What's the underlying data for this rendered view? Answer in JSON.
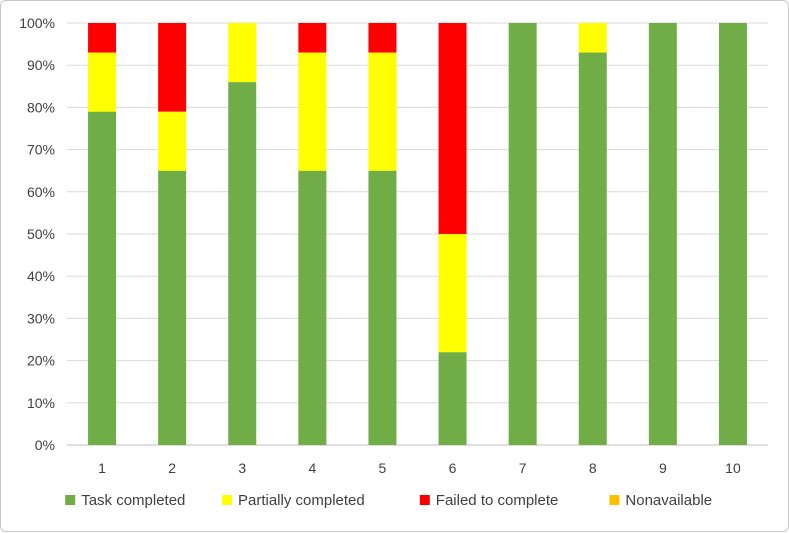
{
  "chart_data": {
    "type": "bar",
    "stacked": true,
    "title": "",
    "xlabel": "",
    "ylabel": "",
    "ylim": [
      0,
      100
    ],
    "y_tick_values": [
      0,
      10,
      20,
      30,
      40,
      50,
      60,
      70,
      80,
      90,
      100
    ],
    "y_tick_labels": [
      "0%",
      "10%",
      "20%",
      "30%",
      "40%",
      "50%",
      "60%",
      "70%",
      "80%",
      "90%",
      "100%"
    ],
    "categories": [
      "1",
      "2",
      "3",
      "4",
      "5",
      "6",
      "7",
      "8",
      "9",
      "10"
    ],
    "grid": true,
    "legend_position": "bottom",
    "series": [
      {
        "name": "Task completed",
        "color": "#70ad47",
        "values": [
          79,
          65,
          86,
          65,
          65,
          22,
          100,
          93,
          100,
          100
        ]
      },
      {
        "name": "Partially completed",
        "color": "#ffff00",
        "values": [
          14,
          14,
          14,
          28,
          28,
          28,
          0,
          7,
          0,
          0
        ]
      },
      {
        "name": "Failed to complete",
        "color": "#ff0000",
        "values": [
          7,
          21,
          0,
          7,
          7,
          50,
          0,
          0,
          0,
          0
        ]
      },
      {
        "name": "Nonavailable",
        "color": "#ffc000",
        "values": [
          0,
          0,
          0,
          0,
          0,
          0,
          0,
          0,
          0,
          0
        ]
      }
    ]
  }
}
